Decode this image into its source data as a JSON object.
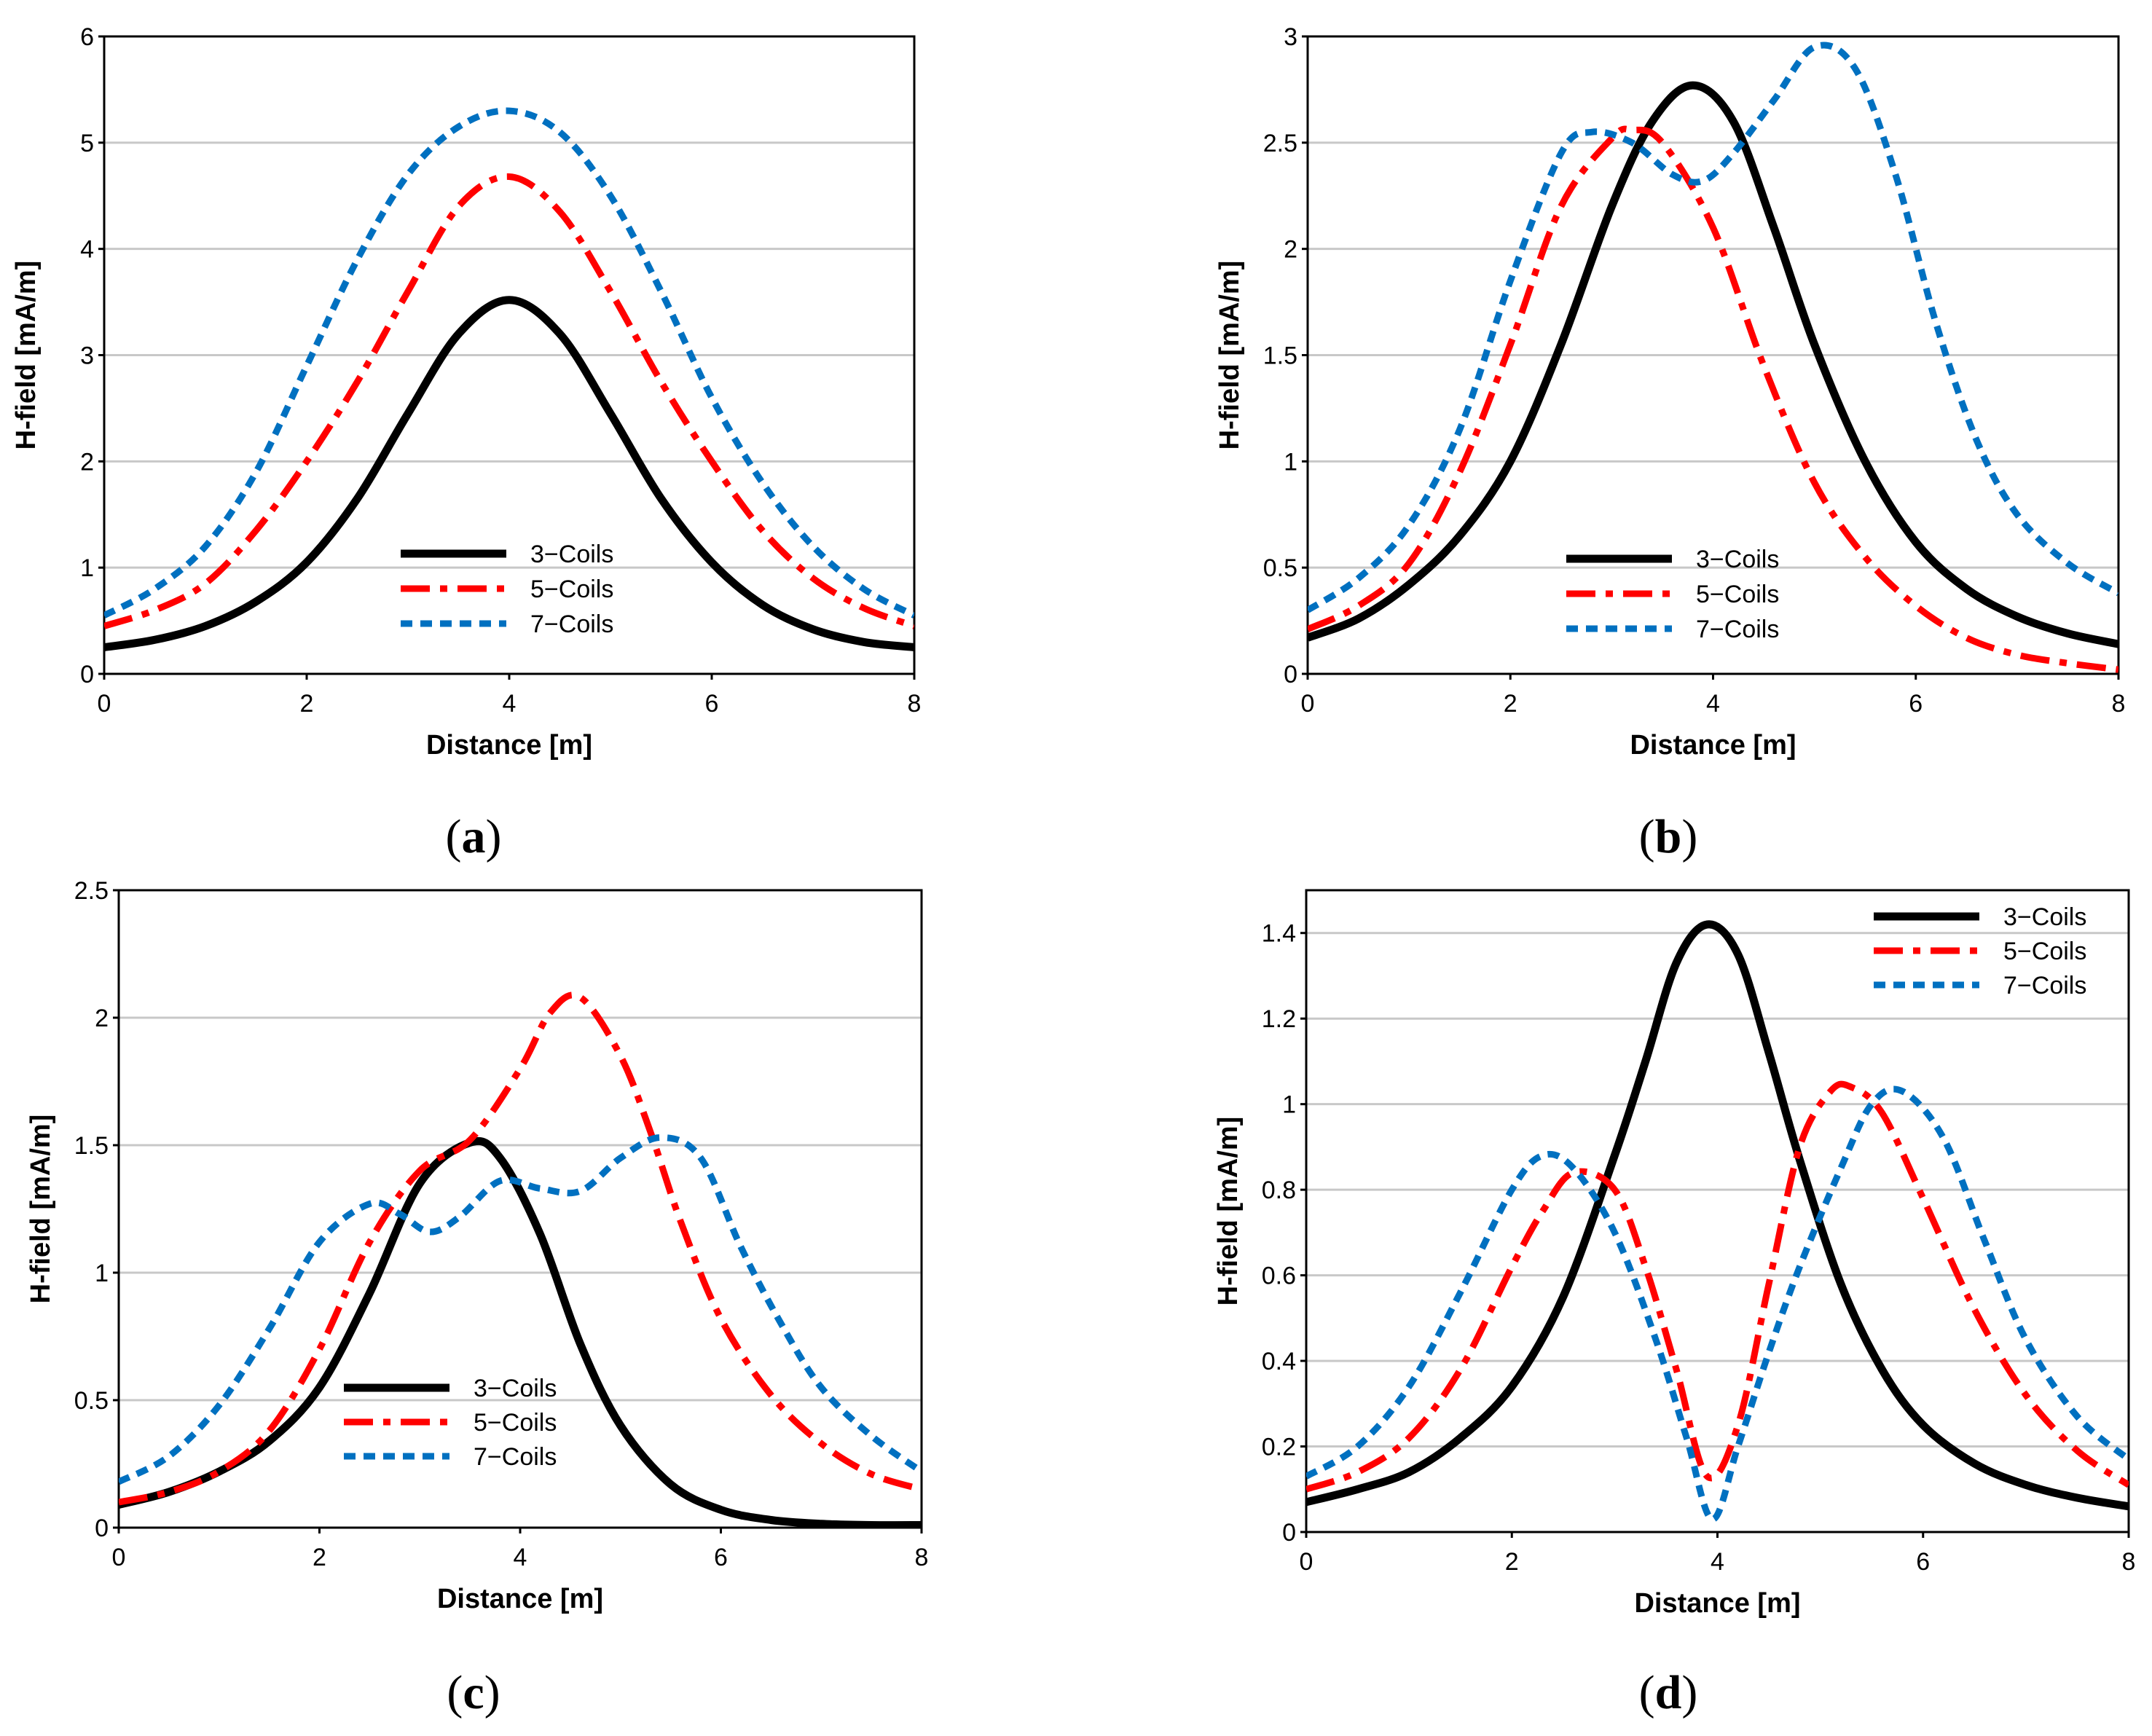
{
  "figure": {
    "colors": {
      "3-Coils": "#000000",
      "5-Coils": "#ff0000",
      "7-Coils": "#0070c0",
      "grid": "#c8c8c8",
      "axis": "#000000"
    }
  },
  "chart_data": [
    {
      "id": "a",
      "type": "line",
      "panel_label": "(a)",
      "xlabel": "Distance [m]",
      "ylabel": "H-field [mA/m]",
      "xlim": [
        0,
        8
      ],
      "ylim": [
        0,
        6
      ],
      "xticks": [
        0,
        2,
        4,
        6,
        8
      ],
      "yticks": [
        0,
        1,
        2,
        3,
        4,
        5,
        6
      ],
      "ytick_labels": [
        "0",
        "1",
        "2",
        "3",
        "4",
        "5",
        "6"
      ],
      "grid": true,
      "legend_position": "bottom-center",
      "series": [
        {
          "name": "3-Coils",
          "style": "solid",
          "x": [
            0,
            0.5,
            1,
            1.5,
            2,
            2.5,
            3,
            3.5,
            4,
            4.5,
            5,
            5.5,
            6,
            6.5,
            7,
            7.5,
            8
          ],
          "y": [
            0.25,
            0.32,
            0.45,
            0.68,
            1.05,
            1.65,
            2.45,
            3.2,
            3.52,
            3.2,
            2.45,
            1.65,
            1.05,
            0.65,
            0.42,
            0.3,
            0.25
          ]
        },
        {
          "name": "5-Coils",
          "style": "dashdot",
          "x": [
            0,
            0.5,
            1,
            1.5,
            2,
            2.5,
            3,
            3.5,
            4,
            4.5,
            5,
            5.5,
            6,
            6.5,
            7,
            7.5,
            8
          ],
          "y": [
            0.45,
            0.6,
            0.85,
            1.35,
            2.0,
            2.75,
            3.6,
            4.4,
            4.68,
            4.35,
            3.6,
            2.75,
            2.0,
            1.35,
            0.9,
            0.62,
            0.45
          ]
        },
        {
          "name": "7-Coils",
          "style": "dashed",
          "x": [
            0,
            0.5,
            1,
            1.5,
            2,
            2.5,
            3,
            3.5,
            4,
            4.5,
            5,
            5.5,
            6,
            6.5,
            7,
            7.5,
            8
          ],
          "y": [
            0.55,
            0.8,
            1.2,
            1.9,
            2.9,
            3.9,
            4.7,
            5.15,
            5.3,
            5.1,
            4.5,
            3.6,
            2.6,
            1.8,
            1.2,
            0.8,
            0.55
          ]
        }
      ]
    },
    {
      "id": "b",
      "type": "line",
      "panel_label": "(b)",
      "xlabel": "Distance [m]",
      "ylabel": "H-field [mA/m]",
      "xlim": [
        0,
        8
      ],
      "ylim": [
        0,
        3
      ],
      "xticks": [
        0,
        2,
        4,
        6,
        8
      ],
      "yticks": [
        0,
        0.5,
        1,
        1.5,
        2,
        2.5,
        3
      ],
      "ytick_labels": [
        "0",
        "0.5",
        "1",
        "1.5",
        "2",
        "2.5",
        "3"
      ],
      "grid": true,
      "legend_position": "bottom-center",
      "series": [
        {
          "name": "3-Coils",
          "style": "solid",
          "x": [
            0,
            0.5,
            1,
            1.5,
            2,
            2.5,
            3,
            3.4,
            3.8,
            4.2,
            4.6,
            5,
            5.5,
            6,
            6.5,
            7,
            7.5,
            8
          ],
          "y": [
            0.17,
            0.26,
            0.42,
            0.65,
            1.0,
            1.55,
            2.2,
            2.6,
            2.77,
            2.6,
            2.1,
            1.55,
            1.0,
            0.62,
            0.4,
            0.27,
            0.19,
            0.14
          ]
        },
        {
          "name": "5-Coils",
          "style": "dashdot",
          "x": [
            0,
            0.5,
            1,
            1.5,
            2,
            2.5,
            3,
            3.2,
            3.5,
            4,
            4.5,
            5,
            5.5,
            6,
            6.5,
            7,
            7.5,
            8
          ],
          "y": [
            0.21,
            0.32,
            0.52,
            0.95,
            1.55,
            2.2,
            2.52,
            2.56,
            2.5,
            2.1,
            1.45,
            0.9,
            0.55,
            0.32,
            0.17,
            0.09,
            0.05,
            0.02
          ]
        },
        {
          "name": "7-Coils",
          "style": "dashed",
          "x": [
            0,
            0.5,
            1,
            1.5,
            2,
            2.5,
            2.8,
            3.2,
            3.6,
            3.9,
            4.2,
            4.6,
            5,
            5.4,
            5.8,
            6.2,
            6.6,
            7,
            7.5,
            8
          ],
          "y": [
            0.3,
            0.45,
            0.7,
            1.15,
            1.85,
            2.45,
            2.55,
            2.5,
            2.35,
            2.32,
            2.45,
            2.7,
            2.95,
            2.85,
            2.35,
            1.65,
            1.1,
            0.75,
            0.52,
            0.38
          ]
        }
      ]
    },
    {
      "id": "c",
      "type": "line",
      "panel_label": "(c)",
      "xlabel": "Distance [m]",
      "ylabel": "H-field [mA/m]",
      "xlim": [
        0,
        8
      ],
      "ylim": [
        0,
        2.5
      ],
      "xticks": [
        0,
        2,
        4,
        6,
        8
      ],
      "yticks": [
        0,
        0.5,
        1,
        1.5,
        2,
        2.5
      ],
      "ytick_labels": [
        "0",
        "0.5",
        "1",
        "1.5",
        "2",
        "2.5"
      ],
      "grid": true,
      "legend_position": "bottom-center",
      "series": [
        {
          "name": "3-Coils",
          "style": "solid",
          "x": [
            0,
            0.5,
            1,
            1.5,
            2,
            2.5,
            3,
            3.5,
            3.8,
            4.2,
            4.6,
            5,
            5.5,
            6,
            6.5,
            7,
            7.5,
            8
          ],
          "y": [
            0.09,
            0.14,
            0.22,
            0.34,
            0.55,
            0.92,
            1.35,
            1.51,
            1.45,
            1.15,
            0.72,
            0.4,
            0.17,
            0.07,
            0.03,
            0.015,
            0.01,
            0.01
          ]
        },
        {
          "name": "5-Coils",
          "style": "dashdot",
          "x": [
            0,
            0.5,
            1,
            1.5,
            2,
            2.5,
            3,
            3.5,
            4,
            4.3,
            4.6,
            5,
            5.3,
            5.6,
            6,
            6.5,
            7,
            7.5,
            8
          ],
          "y": [
            0.1,
            0.14,
            0.22,
            0.38,
            0.7,
            1.12,
            1.4,
            1.52,
            1.8,
            2.02,
            2.08,
            1.85,
            1.55,
            1.2,
            0.82,
            0.52,
            0.33,
            0.21,
            0.15
          ]
        },
        {
          "name": "7-Coils",
          "style": "dashed",
          "x": [
            0,
            0.5,
            1,
            1.5,
            2,
            2.5,
            2.8,
            3.1,
            3.4,
            3.8,
            4.2,
            4.6,
            5,
            5.4,
            5.8,
            6.2,
            6.6,
            7,
            7.5,
            8
          ],
          "y": [
            0.18,
            0.28,
            0.48,
            0.78,
            1.12,
            1.27,
            1.23,
            1.16,
            1.22,
            1.36,
            1.33,
            1.32,
            1.45,
            1.53,
            1.45,
            1.1,
            0.8,
            0.55,
            0.36,
            0.22
          ]
        }
      ]
    },
    {
      "id": "d",
      "type": "line",
      "panel_label": "(d)",
      "xlabel": "Distance [m]",
      "ylabel": "H-field [mA/m]",
      "xlim": [
        0,
        8
      ],
      "ylim": [
        0,
        1.5
      ],
      "xticks": [
        0,
        2,
        4,
        6,
        8
      ],
      "yticks": [
        0,
        0.2,
        0.4,
        0.6,
        0.8,
        1,
        1.2,
        1.4
      ],
      "ytick_labels": [
        "0",
        "0.2",
        "0.4",
        "0.6",
        "0.8",
        "1",
        "1.2",
        "1.4"
      ],
      "grid": true,
      "legend_position": "top-right",
      "series": [
        {
          "name": "3-Coils",
          "style": "solid",
          "x": [
            0,
            0.5,
            1,
            1.5,
            2,
            2.5,
            3,
            3.3,
            3.6,
            3.9,
            4.2,
            4.5,
            4.8,
            5.2,
            5.6,
            6,
            6.5,
            7,
            7.5,
            8
          ],
          "y": [
            0.07,
            0.1,
            0.14,
            0.22,
            0.34,
            0.55,
            0.88,
            1.1,
            1.33,
            1.42,
            1.35,
            1.12,
            0.87,
            0.58,
            0.38,
            0.25,
            0.16,
            0.11,
            0.08,
            0.06
          ]
        },
        {
          "name": "5-Coils",
          "style": "dashdot",
          "x": [
            0,
            0.5,
            1,
            1.5,
            2,
            2.3,
            2.6,
            3,
            3.3,
            3.6,
            3.9,
            4.2,
            4.5,
            4.8,
            5.1,
            5.3,
            5.6,
            6,
            6.5,
            7,
            7.5,
            8
          ],
          "y": [
            0.1,
            0.14,
            0.22,
            0.38,
            0.62,
            0.75,
            0.84,
            0.8,
            0.62,
            0.38,
            0.13,
            0.25,
            0.58,
            0.9,
            1.03,
            1.04,
            0.98,
            0.78,
            0.52,
            0.32,
            0.19,
            0.11
          ]
        },
        {
          "name": "7-Coils",
          "style": "dashed",
          "x": [
            0,
            0.5,
            1,
            1.5,
            2,
            2.3,
            2.6,
            3,
            3.4,
            3.7,
            3.95,
            4.2,
            4.5,
            4.8,
            5.2,
            5.5,
            5.8,
            6.2,
            6.6,
            7,
            7.5,
            8
          ],
          "y": [
            0.13,
            0.2,
            0.34,
            0.56,
            0.8,
            0.88,
            0.85,
            0.7,
            0.45,
            0.22,
            0.03,
            0.2,
            0.42,
            0.62,
            0.85,
            1.0,
            1.03,
            0.92,
            0.68,
            0.45,
            0.27,
            0.17
          ]
        }
      ]
    }
  ]
}
